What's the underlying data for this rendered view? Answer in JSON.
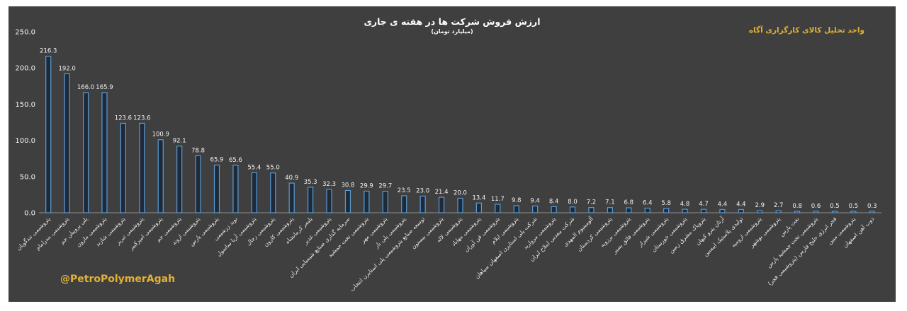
{
  "chart_data": {
    "type": "bar",
    "title": "ارزش فروش شرکت ها در هفته ی جاری",
    "subtitle": "(میلیارد تومان)",
    "source": "واحد تحلیل کالای کارگزاری آگاه",
    "handle": "@PetroPolymerAgah",
    "ylim": [
      0,
      250
    ],
    "yticks": [
      "0.0",
      "50.0",
      "100.0",
      "150.0",
      "200.0",
      "250.0"
    ],
    "grid": false,
    "categories": [
      "پتروشیمی تندگویان",
      "پتروشیمی بندرامام",
      "پلی پروپیلن جم",
      "پتروشیمی مارون",
      "پتروشیمی شازند",
      "پتروشیمی تبریز",
      "پتروشیمی امیرکبیر",
      "پتروشیمی جم",
      "پتروشیمی اروند",
      "پتروشیمی پارس",
      "نوید زرشیمی",
      "پتروشیمی آریا ساسول",
      "پتروشیمی رجال",
      "پتروشیمی کارون",
      "پلیمر کرمانشاه",
      "پتروشیمی غدیر",
      "سرمایه گذاری صنایع شیمیایی ایران",
      "پتروشیمی تخت جمشید",
      "پتروشیمی مهر",
      "پتروشیمی پلی نار",
      "توسعه صنایع پتروشیمی پلی استایرن انتخاب",
      "پتروشیمی بیستون",
      "پتروشیمی لاله",
      "پتروشیمی مهاباد",
      "پتروشیمی فن آوران",
      "پتروشیمی ایلام",
      "شرکت پلی استایرن اصفهان سپاهان",
      "پتروشیمی مروارید",
      "شرکت معدنی املاح ایران",
      "آلومینیوم المهدی",
      "پتروشیمی کردستان",
      "پتروشیمی برزویه",
      "پتروشیمی فائق بصیر",
      "پتروشیمی شیراز",
      "پتروشیمی خوزستان",
      "پتروپاک مشرق زمین",
      "آرتان پترو کیهان",
      "تولیدی پلاستیک اپیسین",
      "پتروشیمی ارومیه",
      "پتروشیمی بوشهر",
      "نفت پارس",
      "پتروشیمی تخت جمشید پارس",
      "فجر انرژی خلیج فارس (پتروشیمی فجر)",
      "پتروشیمی مبین",
      "ذوب آهن اصفهان"
    ],
    "values": [
      216.3,
      192.0,
      166.0,
      165.9,
      123.6,
      123.6,
      100.9,
      92.1,
      78.8,
      65.9,
      65.6,
      55.4,
      55.0,
      40.9,
      35.3,
      32.3,
      30.8,
      29.9,
      29.7,
      23.5,
      23.0,
      21.4,
      20.0,
      13.4,
      11.7,
      9.8,
      9.4,
      8.4,
      8.0,
      7.2,
      7.1,
      6.8,
      6.4,
      5.8,
      4.8,
      4.7,
      4.4,
      4.4,
      2.9,
      2.7,
      0.8,
      0.6,
      0.5,
      0.5,
      0.3
    ],
    "value_labels": [
      "216.3",
      "192.0",
      "166.0",
      "165.9",
      "123.6",
      "123.6",
      "100.9",
      "92.1",
      "78.8",
      "65.9",
      "65.6",
      "55.4",
      "55.0",
      "40.9",
      "35.3",
      "32.3",
      "30.8",
      "29.9",
      "29.7",
      "23.5",
      "23.0",
      "21.4",
      "20.0",
      "13.4",
      "11.7",
      "9.8",
      "9.4",
      "8.4",
      "8.0",
      "7.2",
      "7.1",
      "6.8",
      "6.4",
      "5.8",
      "4.8",
      "4.7",
      "4.4",
      "4.4",
      "2.9",
      "2.7",
      "0.8",
      "0.6",
      "0.5",
      "0.5",
      "0.3"
    ],
    "colors": {
      "bar_fill": "#1f2a38",
      "bar_edge": "#5b9bd5",
      "background": "#3f3f3f",
      "accent": "#e3b233"
    }
  }
}
